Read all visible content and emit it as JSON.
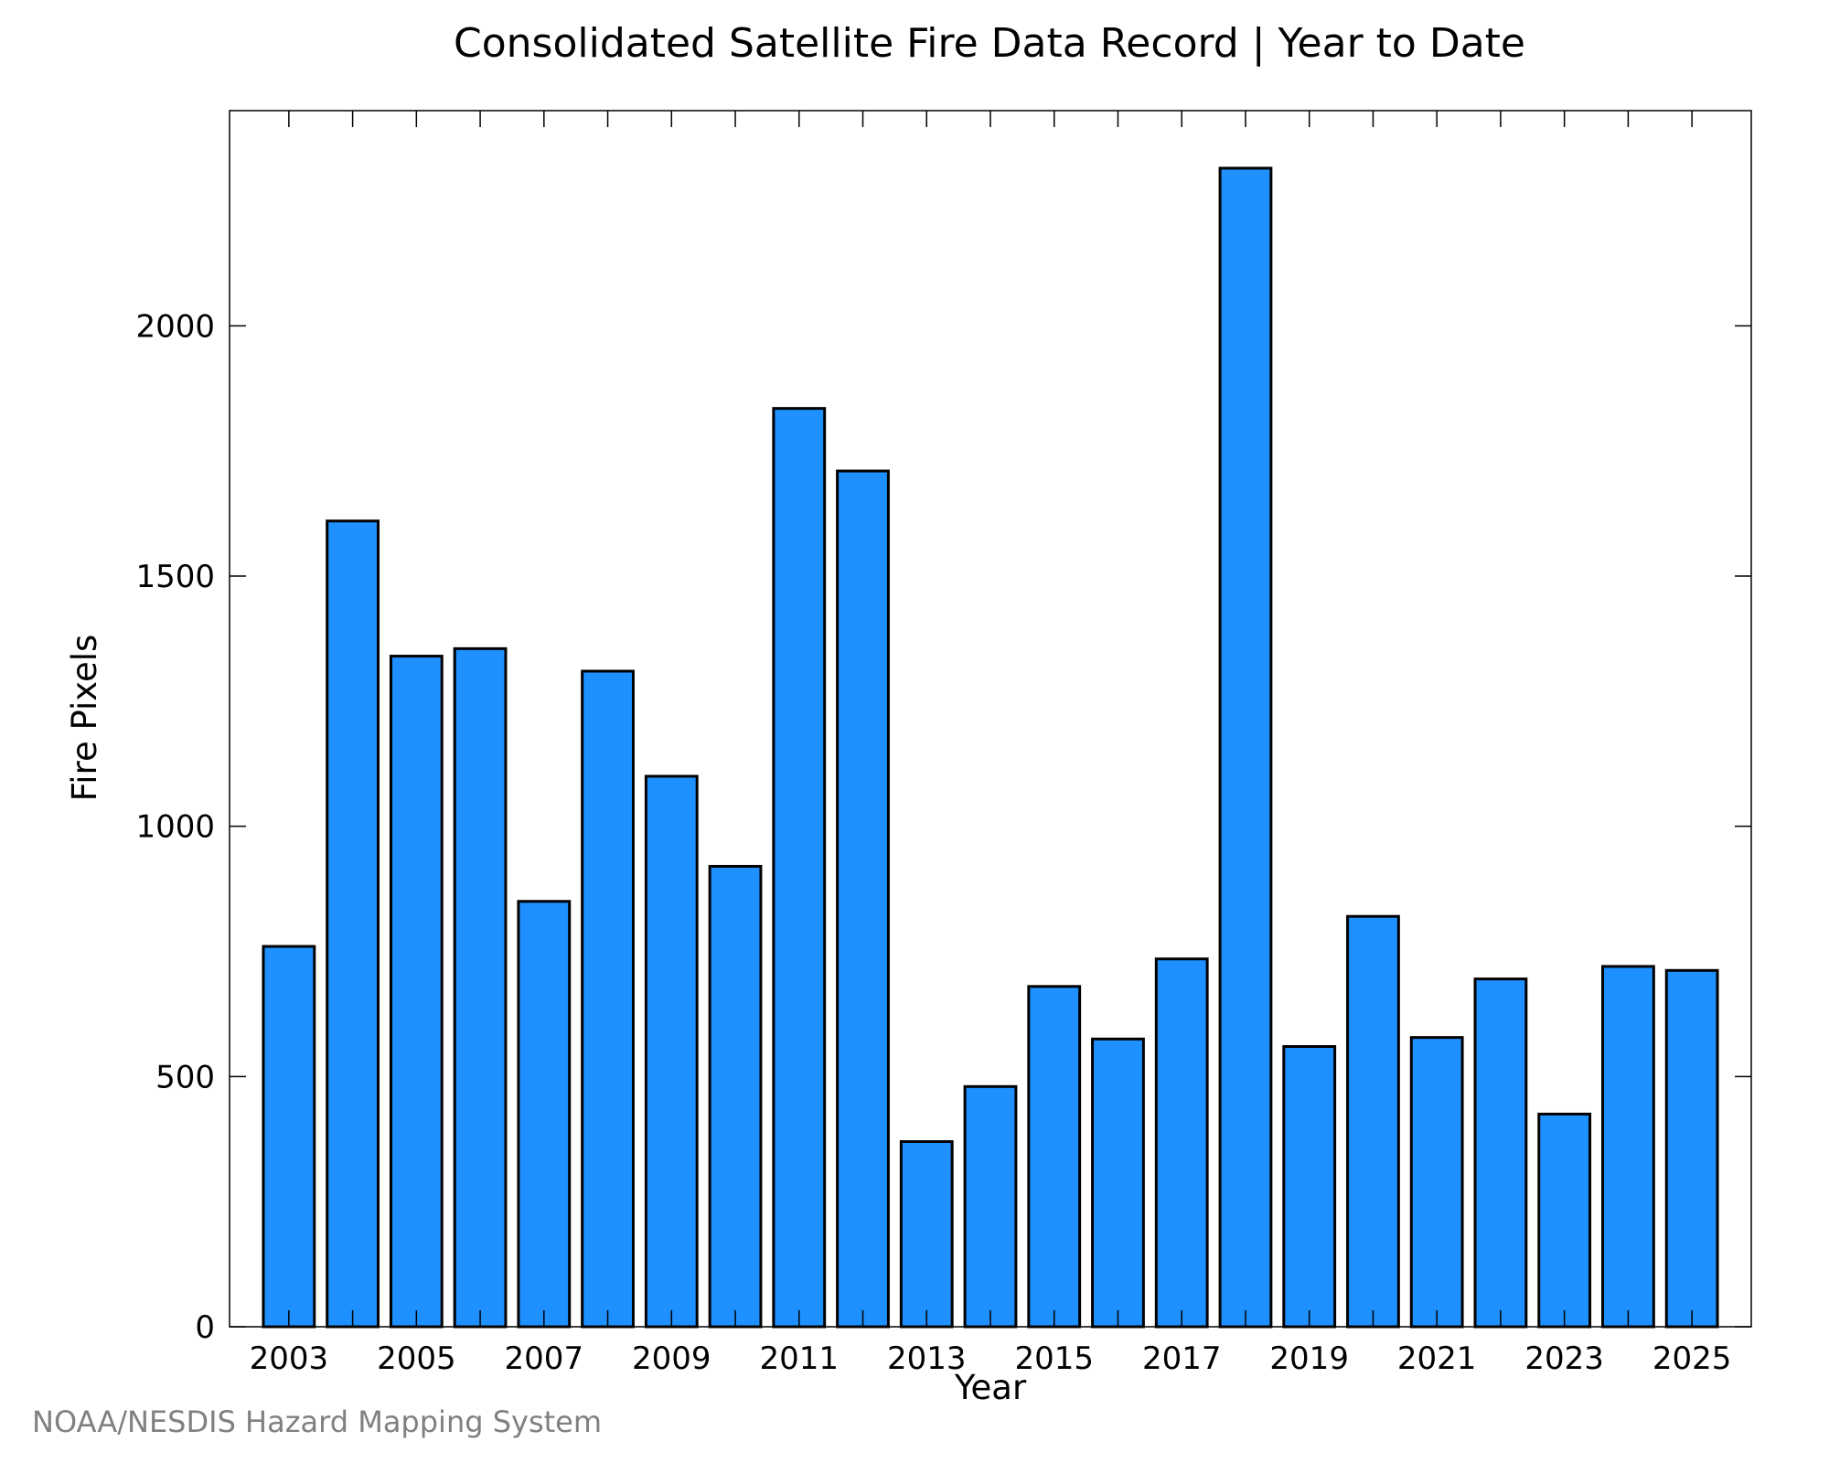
{
  "chart_data": {
    "type": "bar",
    "title": "Consolidated Satellite Fire Data Record | Year to Date",
    "xlabel": "Year",
    "ylabel": "Fire Pixels",
    "categories": [
      "2003",
      "2004",
      "2005",
      "2006",
      "2007",
      "2008",
      "2009",
      "2010",
      "2011",
      "2012",
      "2013",
      "2014",
      "2015",
      "2016",
      "2017",
      "2018",
      "2019",
      "2020",
      "2021",
      "2022",
      "2023",
      "2024",
      "2025"
    ],
    "x_tick_labels": [
      "2003",
      "2005",
      "2007",
      "2009",
      "2011",
      "2013",
      "2015",
      "2017",
      "2019",
      "2021",
      "2023",
      "2025"
    ],
    "y_tick_labels": [
      "0",
      "500",
      "1000",
      "1500",
      "2000"
    ],
    "values": [
      760,
      1610,
      1340,
      1355,
      850,
      1310,
      1100,
      920,
      1835,
      1710,
      370,
      480,
      680,
      575,
      735,
      2315,
      560,
      820,
      578,
      695,
      425,
      720,
      712
    ],
    "ylim": [
      0,
      2430
    ],
    "grid": false,
    "bar_color": "#1e90ff",
    "bar_edge_color": "#000000"
  },
  "credit": "NOAA/NESDIS Hazard Mapping System"
}
